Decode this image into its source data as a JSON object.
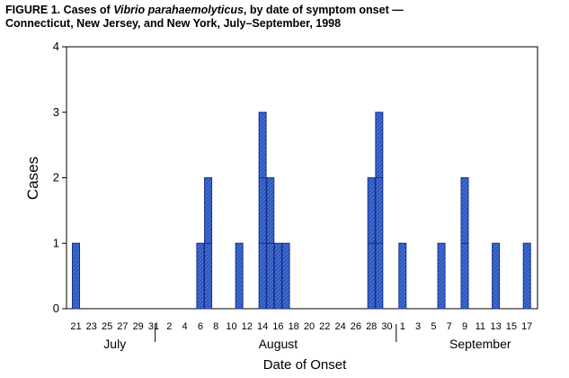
{
  "title": {
    "prefix": "FIGURE 1. Cases of ",
    "italic": "Vibrio parahaemolyticus",
    "suffix": ", by date of symptom onset —",
    "line2": "Connecticut, New Jersey, and New York, July–September, 1998"
  },
  "chart_data": {
    "type": "bar",
    "xlabel": "Date of Onset",
    "ylabel": "Cases",
    "ylim": [
      0,
      4
    ],
    "yticks": [
      0,
      1,
      2,
      3,
      4
    ],
    "grid": false,
    "x_tick_labels": [
      "21",
      "23",
      "25",
      "27",
      "29",
      "31",
      "2",
      "4",
      "6",
      "8",
      "10",
      "12",
      "14",
      "16",
      "18",
      "20",
      "22",
      "24",
      "26",
      "28",
      "30",
      "1",
      "3",
      "5",
      "7",
      "9",
      "11",
      "13",
      "15",
      "17"
    ],
    "month_labels": [
      "July",
      "August",
      "September"
    ],
    "bar_color": "#3c6fd6",
    "bar_hatch_color": "#1b2f8a",
    "dates": [
      {
        "date": "Jul 21",
        "cases": 1
      },
      {
        "date": "Aug 6",
        "cases": 1
      },
      {
        "date": "Aug 7",
        "cases": 2
      },
      {
        "date": "Aug 11",
        "cases": 1
      },
      {
        "date": "Aug 14",
        "cases": 3
      },
      {
        "date": "Aug 15",
        "cases": 2
      },
      {
        "date": "Aug 16",
        "cases": 1
      },
      {
        "date": "Aug 17",
        "cases": 1
      },
      {
        "date": "Aug 28",
        "cases": 2
      },
      {
        "date": "Aug 29",
        "cases": 3
      },
      {
        "date": "Sep 1",
        "cases": 1
      },
      {
        "date": "Sep 6",
        "cases": 1
      },
      {
        "date": "Sep 9",
        "cases": 2
      },
      {
        "date": "Sep 13",
        "cases": 1
      },
      {
        "date": "Sep 17",
        "cases": 1
      }
    ]
  }
}
